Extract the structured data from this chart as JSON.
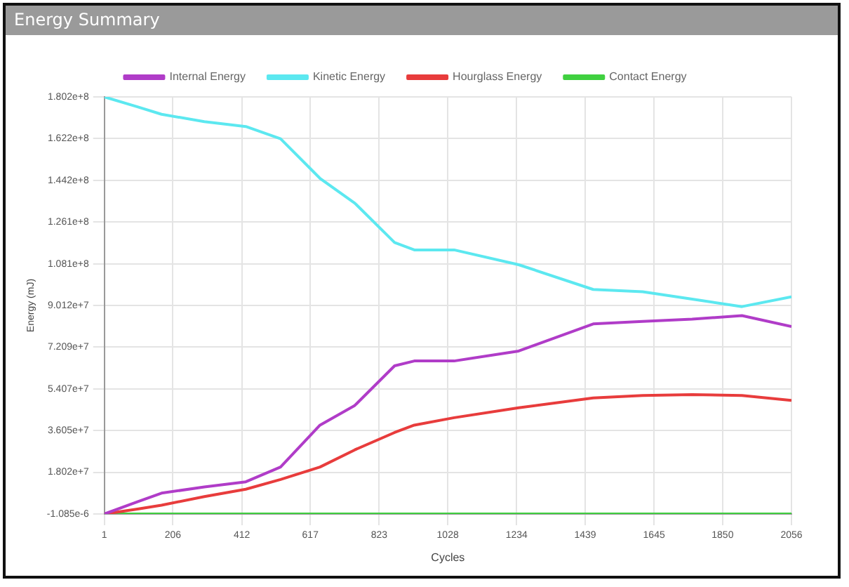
{
  "chart_data": {
    "type": "line",
    "title": "Energy Summary",
    "xlabel": "Cycles",
    "ylabel": "Energy (mJ)",
    "x": [
      1,
      100,
      172,
      300,
      424,
      528,
      646,
      750,
      869,
      928,
      1047,
      1240,
      1463,
      1611,
      1759,
      1908,
      2056
    ],
    "series": [
      {
        "name": "Internal Energy",
        "color": "#b03cc8",
        "values": [
          0,
          5300000,
          9000000,
          11700000,
          13900000,
          20300000,
          38400000,
          46900000,
          64000000,
          66100000,
          66100000,
          70400000,
          82100000,
          83200000,
          84200000,
          85700000,
          81000000
        ]
      },
      {
        "name": "Kinetic Energy",
        "color": "#5ce8f0",
        "values": [
          180200000,
          175900000,
          172700000,
          169500000,
          167400000,
          162100000,
          145000000,
          134300000,
          117300000,
          114100000,
          114100000,
          107700000,
          97000000,
          96000000,
          92800000,
          89600000,
          93800000
        ]
      },
      {
        "name": "Hourglass Energy",
        "color": "#e83c3c",
        "values": [
          0,
          2100000,
          3800000,
          7500000,
          10700000,
          14900000,
          20300000,
          27700000,
          35200000,
          38400000,
          41600000,
          45900000,
          50100000,
          51200000,
          51600000,
          51200000,
          49100000
        ]
      },
      {
        "name": "Contact Energy",
        "color": "#40d040",
        "values": [
          0,
          0,
          0,
          0,
          0,
          0,
          0,
          0,
          0,
          0,
          0,
          0,
          0,
          0,
          0,
          0,
          0
        ]
      }
    ],
    "xlim": [
      1,
      2056
    ],
    "xticks": [
      1,
      206,
      412,
      617,
      823,
      1028,
      1234,
      1439,
      1645,
      1850,
      2056
    ],
    "ylim": [
      -1.085e-06,
      180200000
    ],
    "yticks": [
      {
        "value": -1.085e-06,
        "label": "-1.085e-6"
      },
      {
        "value": 18020000,
        "label": "1.802e+7"
      },
      {
        "value": 36050000,
        "label": "3.605e+7"
      },
      {
        "value": 54070000,
        "label": "5.407e+7"
      },
      {
        "value": 72090000,
        "label": "7.209e+7"
      },
      {
        "value": 90120000,
        "label": "9.012e+7"
      },
      {
        "value": 108100000,
        "label": "1.081e+8"
      },
      {
        "value": 126100000,
        "label": "1.261e+8"
      },
      {
        "value": 144200000,
        "label": "1.442e+8"
      },
      {
        "value": 162200000,
        "label": "1.622e+8"
      },
      {
        "value": 180200000,
        "label": "1.802e+8"
      }
    ],
    "grid": true,
    "legend": "top",
    "marker": "none",
    "line_style": "solid"
  }
}
